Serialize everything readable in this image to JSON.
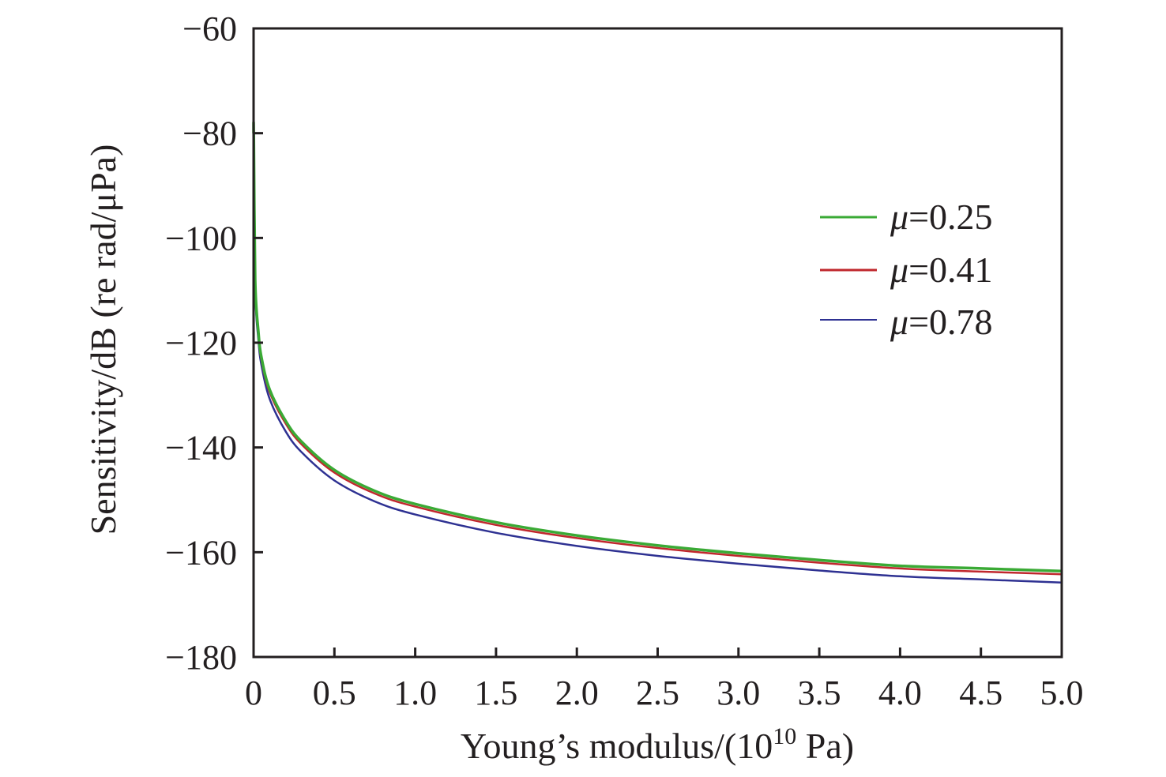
{
  "chart_data": {
    "type": "line",
    "title": "",
    "xlabel": "Young’s modulus/(10",
    "xlabel_sup": "10",
    "xlabel_suffix": " Pa)",
    "ylabel": "Sensitivity/dB (re rad/μPa)",
    "xlim": [
      0,
      5.0
    ],
    "ylim": [
      -180,
      -60
    ],
    "grid": false,
    "legend_position": "upper-right",
    "x_ticks": [
      0,
      0.5,
      1.0,
      1.5,
      2.0,
      2.5,
      3.0,
      3.5,
      4.0,
      4.5,
      5.0
    ],
    "x_tick_labels": [
      "0",
      "0.5",
      "1.0",
      "1.5",
      "2.0",
      "2.5",
      "3.0",
      "3.5",
      "4.0",
      "4.5",
      "5.0"
    ],
    "y_ticks": [
      -60,
      -80,
      -100,
      -120,
      -140,
      -160,
      -180
    ],
    "y_tick_labels": [
      "−60",
      "−80",
      "−100",
      "−120",
      "−140",
      "−160",
      "−180"
    ],
    "x": [
      0.001,
      0.01,
      0.03,
      0.05,
      0.1,
      0.2,
      0.3,
      0.5,
      0.75,
      1.0,
      1.5,
      2.0,
      2.5,
      3.0,
      3.5,
      4.0,
      4.5,
      5.0
    ],
    "series": [
      {
        "name": "μ=0.25",
        "legend_prefix": "μ",
        "legend_value": "=0.25",
        "color": "#3aaa35",
        "values": [
          -80,
          -108,
          -118,
          -123,
          -129,
          -135,
          -139,
          -144.3,
          -148.3,
          -150.8,
          -154.3,
          -156.8,
          -158.7,
          -160.2,
          -161.5,
          -162.6,
          -163.1,
          -163.6
        ]
      },
      {
        "name": "μ=0.41",
        "legend_prefix": "μ",
        "legend_value": "=0.41",
        "color": "#c0272d",
        "values": [
          -80,
          -108.5,
          -118.5,
          -123.5,
          -129.5,
          -135.5,
          -139.5,
          -144.8,
          -148.8,
          -151.3,
          -154.8,
          -157.3,
          -159.2,
          -160.7,
          -162.0,
          -163.1,
          -163.7,
          -164.2
        ]
      },
      {
        "name": "μ=0.78",
        "legend_prefix": "μ",
        "legend_value": "=0.78",
        "color": "#2e3192",
        "values": [
          -80,
          -109.5,
          -119.5,
          -124.5,
          -130.8,
          -137,
          -141,
          -146.3,
          -150.3,
          -152.8,
          -156.3,
          -158.8,
          -160.7,
          -162.2,
          -163.5,
          -164.6,
          -165.2,
          -165.8
        ]
      }
    ]
  }
}
